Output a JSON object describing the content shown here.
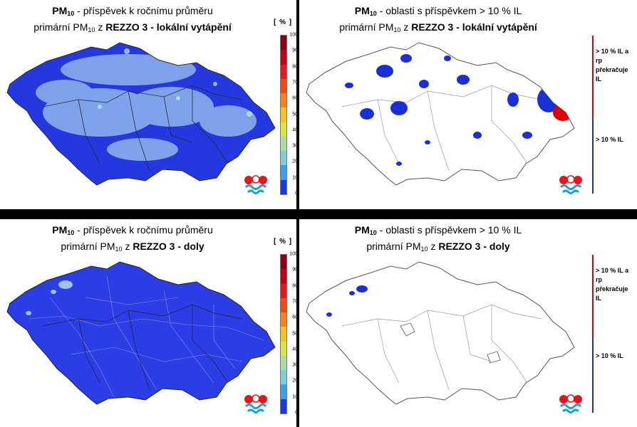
{
  "colors": {
    "map_blue": "#2438e0",
    "map_light": "#8fb6ec",
    "hot_red": "#e00000",
    "border": "#2a2a2a",
    "legend_red": "#e00000",
    "legend_blue": "#1a2fd8"
  },
  "colorbar": {
    "unit": "[ % ]",
    "ticks": [
      "100",
      "90",
      "80",
      "70",
      "60",
      "50",
      "40",
      "30",
      "20",
      "10",
      "0"
    ],
    "colors": [
      "#8a0014",
      "#c00016",
      "#e8161a",
      "#f04a12",
      "#f7821a",
      "#f5c31f",
      "#d9e63a",
      "#a8dca0",
      "#7ad0d4",
      "#3aa0f0",
      "#1a3ae0"
    ]
  },
  "legend": {
    "high": "> 10 % IL a rp překračuje IL",
    "low": "> 10 % IL"
  },
  "panels": {
    "top_left": {
      "pm": "PM",
      "pm_sub": "10",
      "line1_rest": " - příspěvek k ročnímu průměru",
      "line2_pre": "primární PM",
      "line2_sub": "10",
      "line2_mid": " z ",
      "line2_bold": "REZZO 3 - lokální vytápění"
    },
    "top_right": {
      "pm": "PM",
      "pm_sub": "10",
      "line1_rest": " - oblasti s příspěvkem > 10 % IL",
      "line2_pre": "primární PM",
      "line2_sub": "10",
      "line2_mid": " z ",
      "line2_bold": "REZZO 3 - lokální vytápění"
    },
    "bottom_left": {
      "pm": "PM",
      "pm_sub": "10",
      "line1_rest": " - příspěvek k ročnímu průměru",
      "line2_pre": "primární PM",
      "line2_sub": "10",
      "line2_mid": " z ",
      "line2_bold": "REZZO 3 - doly"
    },
    "bottom_right": {
      "pm": "PM",
      "pm_sub": "10",
      "line1_rest": " - oblasti s příspěvkem > 10 % IL",
      "line2_pre": "primární PM",
      "line2_sub": "10",
      "line2_mid": " z ",
      "line2_bold": "REZZO 3 - doly"
    }
  },
  "logo_icon": "chmi-logo"
}
